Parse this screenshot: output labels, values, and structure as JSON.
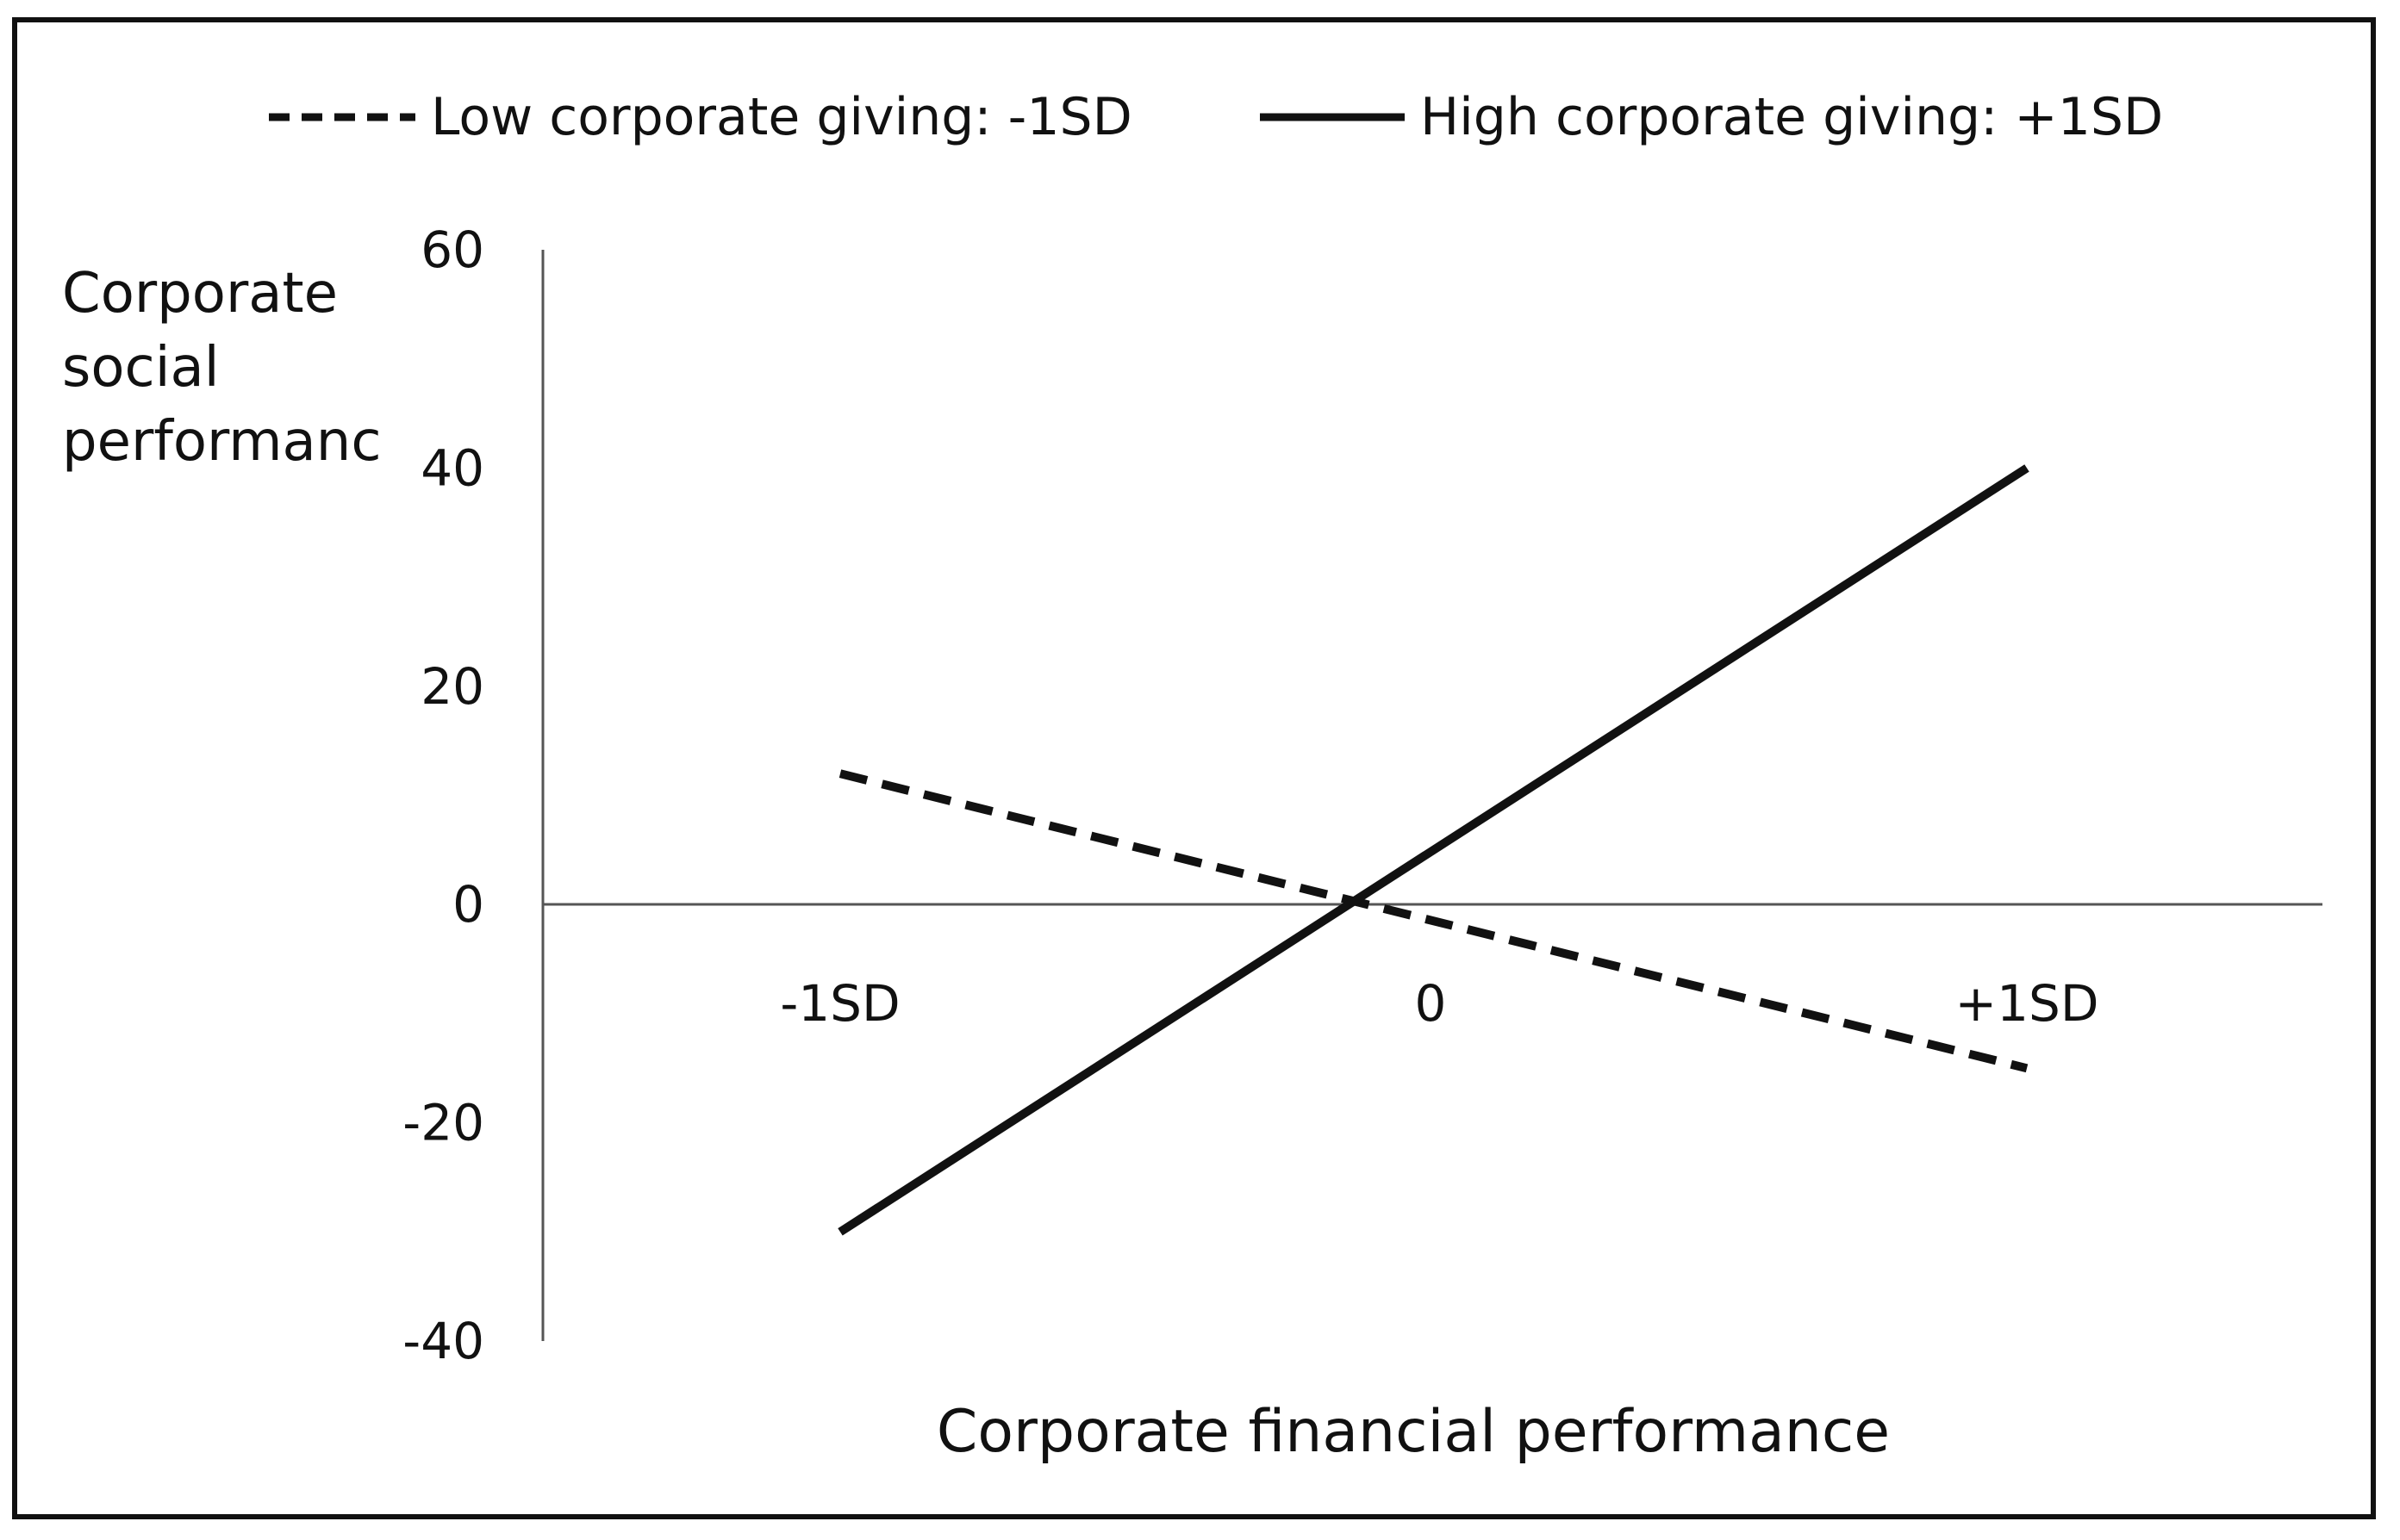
{
  "chart_data": {
    "type": "line",
    "xlabel": "Corporate financial performance",
    "ylabel_lines": [
      "Corporate",
      "social",
      "performanc"
    ],
    "x_categories": [
      "-1SD",
      "0",
      "+1SD"
    ],
    "y_ticks": [
      60,
      40,
      20,
      0,
      -20,
      -40
    ],
    "ylim": [
      -40,
      60
    ],
    "legend_position": "top",
    "grid": false,
    "series": [
      {
        "name": "Low corporate giving: -1SD",
        "style": "dashed",
        "color": "#111111",
        "x": [
          "-1SD",
          "+1SD"
        ],
        "y": [
          12,
          -15
        ]
      },
      {
        "name": "High corporate giving: +1SD",
        "style": "solid",
        "color": "#111111",
        "x": [
          "-1SD",
          "+1SD"
        ],
        "y": [
          -30,
          40
        ]
      }
    ]
  }
}
